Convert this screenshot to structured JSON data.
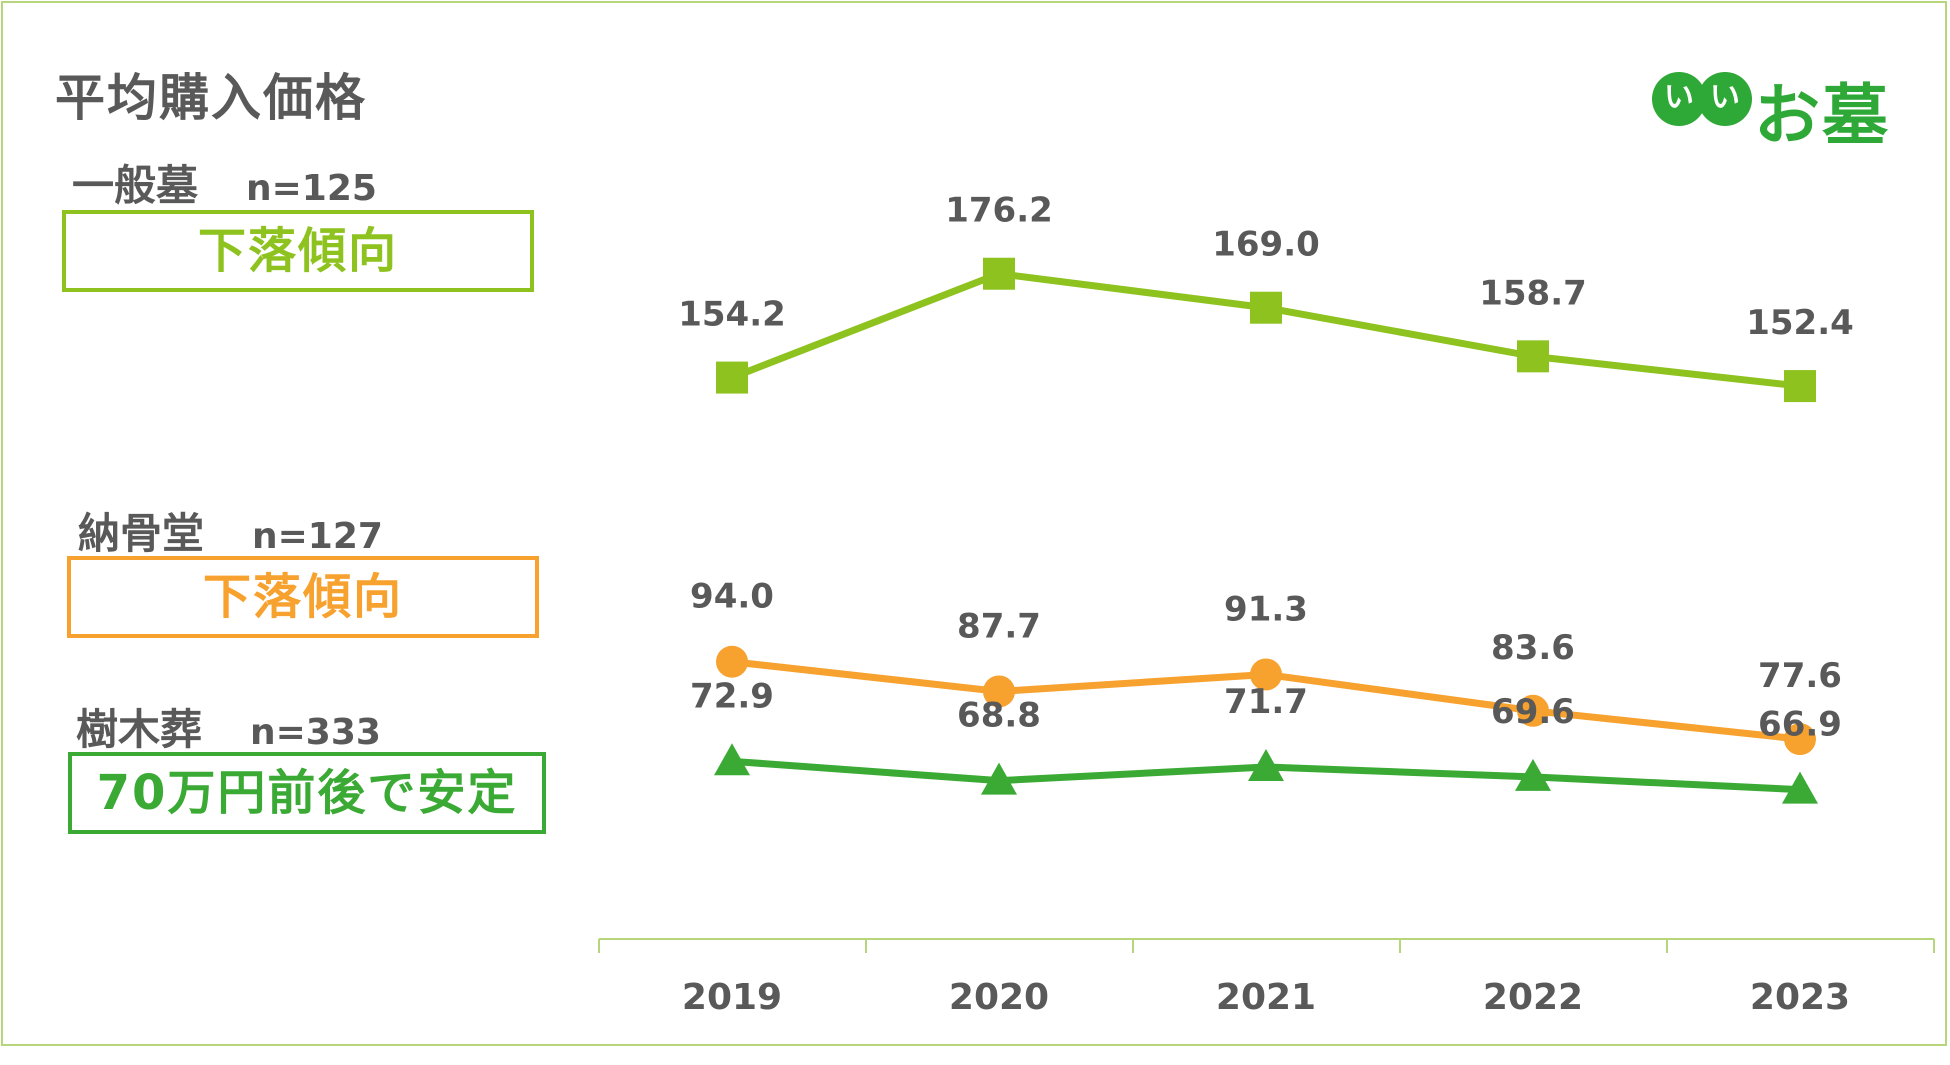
{
  "title": "平均購入価格",
  "logo": {
    "circle_1": "い",
    "circle_2": "い",
    "text": "お墓"
  },
  "colors": {
    "general": "#8dc21f",
    "ossuary": "#f7a12f",
    "tree": "#3aaa35",
    "axis": "#b7d57a",
    "text": "#595959"
  },
  "legend": [
    {
      "name": "一般墓",
      "n": "n=125",
      "trend": "下落傾向"
    },
    {
      "name": "納骨堂",
      "n": "n=127",
      "trend": "下落傾向"
    },
    {
      "name": "樹木葬",
      "n": "n=333",
      "trend": "70万円前後で安定"
    }
  ],
  "chart_data": {
    "type": "line",
    "title": "平均購入価格",
    "categories": [
      "2019",
      "2020",
      "2021",
      "2022",
      "2023"
    ],
    "series": [
      {
        "name": "一般墓",
        "marker": "square",
        "values": [
          154.2,
          176.2,
          169.0,
          158.7,
          152.4
        ],
        "labels": [
          "154.2",
          "176.2",
          "169.0",
          "158.7",
          "152.4"
        ]
      },
      {
        "name": "納骨堂",
        "marker": "circle",
        "values": [
          94.0,
          87.7,
          91.3,
          83.6,
          77.6
        ],
        "labels": [
          "94.0",
          "87.7",
          "91.3",
          "83.6",
          "77.6"
        ]
      },
      {
        "name": "樹木葬",
        "marker": "triangle",
        "values": [
          72.9,
          68.8,
          71.7,
          69.6,
          66.9
        ],
        "labels": [
          "72.9",
          "68.8",
          "71.7",
          "69.6",
          "66.9"
        ]
      }
    ],
    "xlabel": "",
    "ylabel": "",
    "grid": false
  }
}
